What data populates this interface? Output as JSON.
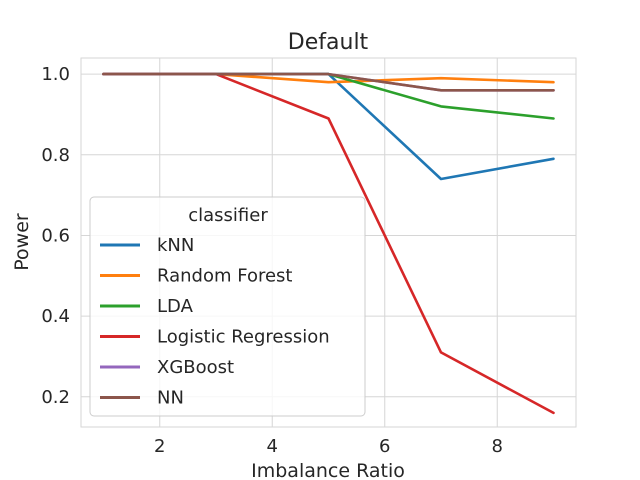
{
  "chart_data": {
    "type": "line",
    "title": "Default",
    "xlabel": "Imbalance Ratio",
    "ylabel": "Power",
    "xlim": [
      0.6,
      9.4
    ],
    "ylim": [
      0.125,
      1.04
    ],
    "xticks": [
      2,
      4,
      6,
      8
    ],
    "yticks": [
      0.2,
      0.4,
      0.6,
      0.8,
      1.0
    ],
    "xtick_labels": [
      "2",
      "4",
      "6",
      "8"
    ],
    "ytick_labels": [
      "0.2",
      "0.4",
      "0.6",
      "0.8",
      "1.0"
    ],
    "grid": true,
    "legend_title": "classifier",
    "legend_position": "center-left",
    "x": [
      1,
      3,
      5,
      7,
      9
    ],
    "series": [
      {
        "name": "kNN",
        "color": "#1f77b4",
        "values": [
          1.0,
          1.0,
          1.0,
          0.74,
          0.79
        ]
      },
      {
        "name": "Random Forest",
        "color": "#ff7f0e",
        "values": [
          1.0,
          1.0,
          0.98,
          0.99,
          0.98
        ]
      },
      {
        "name": "LDA",
        "color": "#2ca02c",
        "values": [
          1.0,
          1.0,
          1.0,
          0.92,
          0.89
        ]
      },
      {
        "name": "Logistic Regression",
        "color": "#d62728",
        "values": [
          1.0,
          1.0,
          0.89,
          0.31,
          0.16
        ]
      },
      {
        "name": "XGBoost",
        "color": "#9467bd",
        "values": [
          1.0,
          1.0,
          1.0,
          0.96,
          0.96
        ]
      },
      {
        "name": "NN",
        "color": "#8c564b",
        "values": [
          1.0,
          1.0,
          1.0,
          0.96,
          0.96
        ]
      }
    ]
  }
}
